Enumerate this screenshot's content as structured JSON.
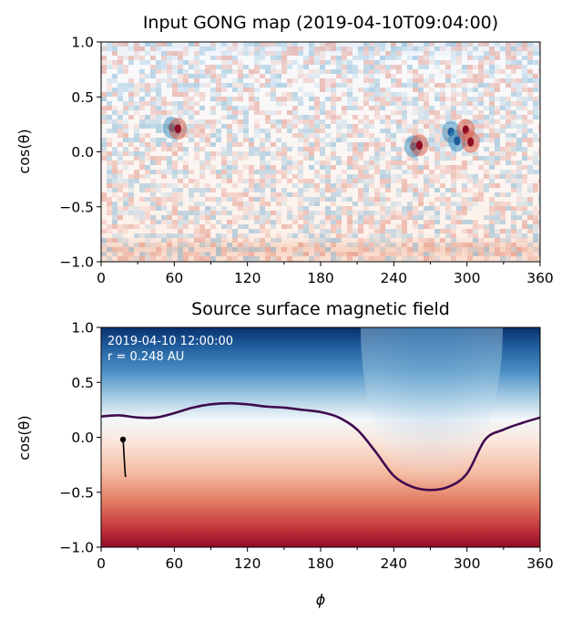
{
  "chart_data": [
    {
      "type": "heatmap",
      "title": "Input GONG map (2019-04-10T09:04:00)",
      "xlabel": "",
      "ylabel": "cos(θ)",
      "xlim": [
        0,
        360
      ],
      "ylim": [
        -1.0,
        1.0
      ],
      "xticks": [
        "0",
        "60",
        "120",
        "180",
        "240",
        "300",
        "360"
      ],
      "yticks": [
        "−1.0",
        "−0.5",
        "0.0",
        "0.5",
        "1.0"
      ],
      "colormap": "RdBu",
      "active_regions": [
        {
          "phi": 58,
          "cos_theta": 0.22,
          "polarity": "negative"
        },
        {
          "phi": 63,
          "cos_theta": 0.21,
          "polarity": "positive"
        },
        {
          "phi": 256,
          "cos_theta": 0.05,
          "polarity": "negative"
        },
        {
          "phi": 261,
          "cos_theta": 0.06,
          "polarity": "positive"
        },
        {
          "phi": 287,
          "cos_theta": 0.18,
          "polarity": "negative"
        },
        {
          "phi": 292,
          "cos_theta": 0.1,
          "polarity": "negative"
        },
        {
          "phi": 299,
          "cos_theta": 0.2,
          "polarity": "positive"
        },
        {
          "phi": 303,
          "cos_theta": 0.09,
          "polarity": "positive"
        }
      ],
      "grid": false
    },
    {
      "type": "heatmap",
      "title": "Source surface magnetic field",
      "xlabel": "ϕ",
      "ylabel": "cos(θ)",
      "xlim": [
        0,
        360
      ],
      "ylim": [
        -1.0,
        1.0
      ],
      "xticks": [
        "0",
        "60",
        "120",
        "180",
        "240",
        "300",
        "360"
      ],
      "yticks": [
        "−1.0",
        "−0.5",
        "0.0",
        "0.5",
        "1.0"
      ],
      "colormap": "RdBu",
      "annotations": [
        "2019-04-10 12:00:00",
        "r = 0.248 AU"
      ],
      "neutral_line": {
        "color": "#3f0a4e",
        "x": [
          0,
          15,
          30,
          45,
          60,
          75,
          90,
          105,
          120,
          135,
          150,
          165,
          180,
          195,
          210,
          225,
          240,
          255,
          270,
          285,
          300,
          315,
          330,
          345,
          360
        ],
        "y": [
          0.19,
          0.2,
          0.18,
          0.18,
          0.22,
          0.27,
          0.3,
          0.31,
          0.3,
          0.28,
          0.27,
          0.25,
          0.23,
          0.18,
          0.07,
          -0.13,
          -0.35,
          -0.45,
          -0.48,
          -0.45,
          -0.33,
          -0.02,
          0.07,
          0.13,
          0.18
        ]
      },
      "trace": {
        "color": "#000000",
        "x": [
          18,
          18.5,
          19,
          19.5,
          20
        ],
        "y": [
          -0.02,
          -0.1,
          -0.2,
          -0.29,
          -0.36
        ]
      },
      "grid": false
    }
  ]
}
